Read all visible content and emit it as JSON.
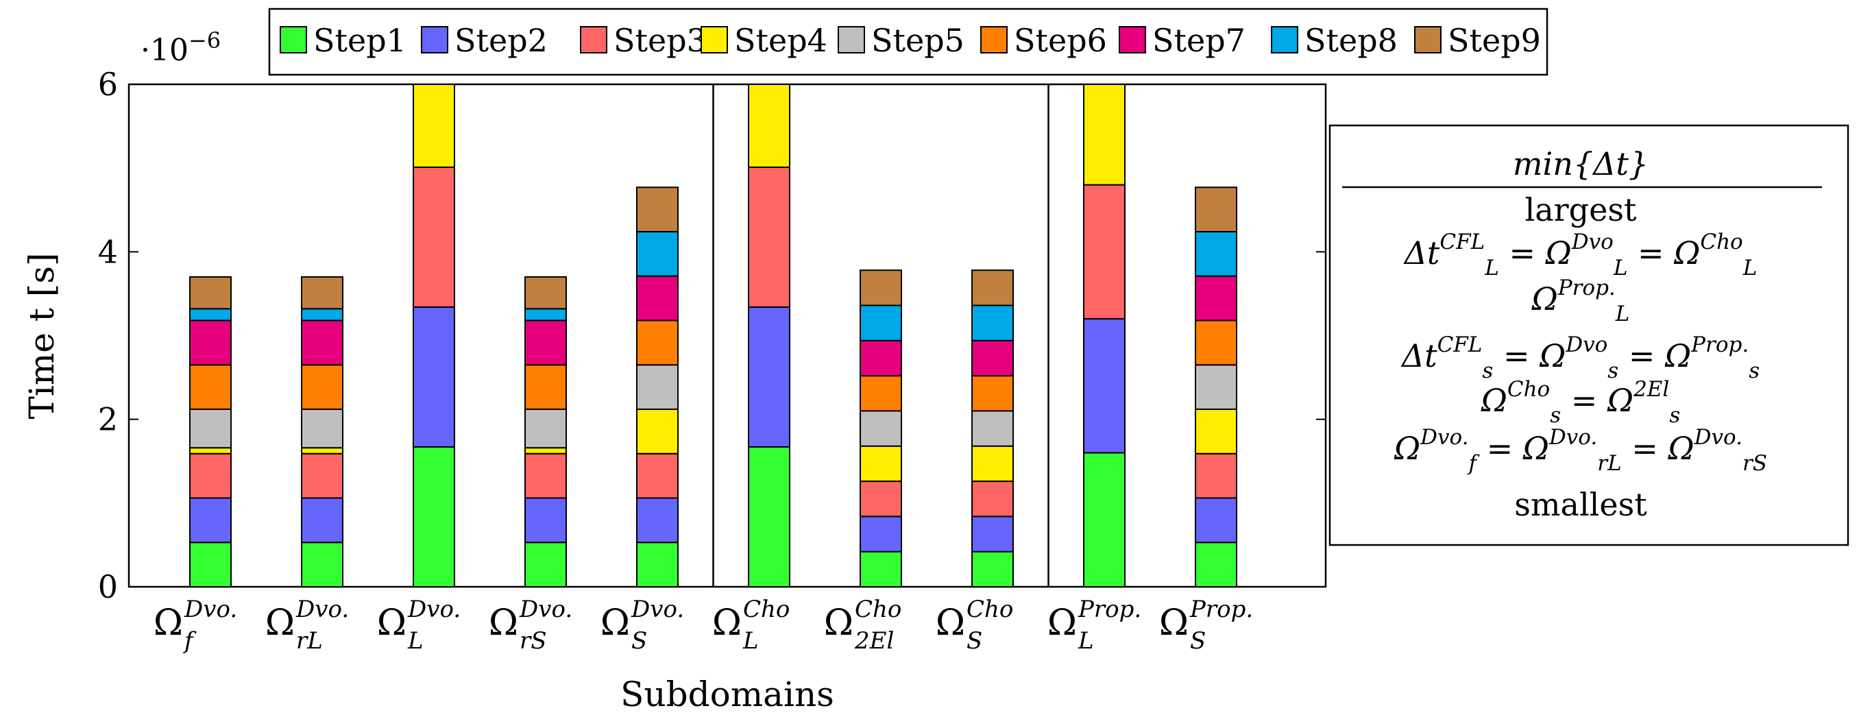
{
  "chart_data": {
    "type": "bar",
    "stacked": true,
    "xlabel": "Subdomains",
    "ylabel": "Time t [s]",
    "y_scale_label": "·10",
    "y_scale_exponent": "−6",
    "ylim": [
      0,
      6
    ],
    "yticks": [
      0,
      2,
      4,
      6
    ],
    "y_tick_labels": [
      "0",
      "2",
      "4",
      "6"
    ],
    "grid": false,
    "legend_position": "top",
    "categories": [
      {
        "main": "Ω",
        "sup": "Dvo.",
        "sub": "f"
      },
      {
        "main": "Ω",
        "sup": "Dvo.",
        "sub": "rL"
      },
      {
        "main": "Ω",
        "sup": "Dvo.",
        "sub": "L"
      },
      {
        "main": "Ω",
        "sup": "Dvo.",
        "sub": "rS"
      },
      {
        "main": "Ω",
        "sup": "Dvo.",
        "sub": "S"
      },
      {
        "main": "Ω",
        "sup": "Cho",
        "sub": "L"
      },
      {
        "main": "Ω",
        "sup": "Cho",
        "sub": "2El"
      },
      {
        "main": "Ω",
        "sup": "Cho",
        "sub": "S"
      },
      {
        "main": "Ω",
        "sup": "Prop.",
        "sub": "L"
      },
      {
        "main": "Ω",
        "sup": "Prop.",
        "sub": "S"
      }
    ],
    "group_separators_after": [
      4,
      7
    ],
    "series": [
      {
        "name": "Step1",
        "color": "#33ff33",
        "values": [
          0.53,
          0.53,
          1.67,
          0.53,
          0.53,
          1.67,
          0.42,
          0.42,
          1.6,
          0.53
        ]
      },
      {
        "name": "Step2",
        "color": "#6666ff",
        "values": [
          0.53,
          0.53,
          1.67,
          0.53,
          0.53,
          1.67,
          0.42,
          0.42,
          1.6,
          0.53
        ]
      },
      {
        "name": "Step3",
        "color": "#ff6666",
        "values": [
          0.53,
          0.53,
          1.67,
          0.53,
          0.53,
          1.67,
          0.42,
          0.42,
          1.6,
          0.53
        ]
      },
      {
        "name": "Step4",
        "color": "#ffee00",
        "values": [
          0.07,
          0.07,
          1.67,
          0.07,
          0.53,
          1.67,
          0.42,
          0.42,
          1.6,
          0.53
        ]
      },
      {
        "name": "Step5",
        "color": "#bfbfbf",
        "values": [
          0.46,
          0.46,
          0.0,
          0.46,
          0.53,
          0.0,
          0.42,
          0.42,
          0.0,
          0.53
        ]
      },
      {
        "name": "Step6",
        "color": "#ff8000",
        "values": [
          0.53,
          0.53,
          0.0,
          0.53,
          0.53,
          0.0,
          0.42,
          0.42,
          0.0,
          0.53
        ]
      },
      {
        "name": "Step7",
        "color": "#e6007e",
        "values": [
          0.53,
          0.53,
          0.0,
          0.53,
          0.53,
          0.0,
          0.42,
          0.42,
          0.0,
          0.53
        ]
      },
      {
        "name": "Step8",
        "color": "#00a8e8",
        "values": [
          0.14,
          0.14,
          0.0,
          0.14,
          0.53,
          0.0,
          0.42,
          0.42,
          0.0,
          0.53
        ]
      },
      {
        "name": "Step9",
        "color": "#bf8040",
        "values": [
          0.38,
          0.38,
          0.0,
          0.38,
          0.53,
          0.0,
          0.42,
          0.42,
          0.0,
          0.53
        ]
      }
    ]
  },
  "annotation": {
    "title": "min{Δt}",
    "top_label": "largest",
    "bottom_label": "smallest",
    "lines": [
      [
        {
          "t": "Δt"
        },
        {
          "t": "CFL",
          "sup": true
        },
        {
          "t": "L",
          "sub": true
        },
        {
          "t": " = Ω"
        },
        {
          "t": "Dvo",
          "sup": true
        },
        {
          "t": "L",
          "sub": true
        },
        {
          "t": " = Ω"
        },
        {
          "t": "Cho",
          "sup": true
        },
        {
          "t": "L",
          "sub": true
        }
      ],
      [
        {
          "t": "Ω"
        },
        {
          "t": "Prop.",
          "sup": true
        },
        {
          "t": "L",
          "sub": true
        }
      ],
      [
        {
          "t": "Δt"
        },
        {
          "t": "CFL",
          "sup": true
        },
        {
          "t": "s",
          "sub": true
        },
        {
          "t": " = Ω"
        },
        {
          "t": "Dvo",
          "sup": true
        },
        {
          "t": "s",
          "sub": true
        },
        {
          "t": " = Ω"
        },
        {
          "t": "Prop.",
          "sup": true
        },
        {
          "t": "s",
          "sub": true
        }
      ],
      [
        {
          "t": "Ω"
        },
        {
          "t": "Cho",
          "sup": true
        },
        {
          "t": "s",
          "sub": true
        },
        {
          "t": " = Ω"
        },
        {
          "t": "2El",
          "sup": true
        },
        {
          "t": "s",
          "sub": true
        }
      ],
      [
        {
          "t": "Ω"
        },
        {
          "t": "Dvo.",
          "sup": true
        },
        {
          "t": "f",
          "sub": true
        },
        {
          "t": " = Ω"
        },
        {
          "t": "Dvo.",
          "sup": true
        },
        {
          "t": "rL",
          "sub": true
        },
        {
          "t": " = Ω"
        },
        {
          "t": "Dvo.",
          "sup": true
        },
        {
          "t": "rS",
          "sub": true
        }
      ]
    ]
  }
}
